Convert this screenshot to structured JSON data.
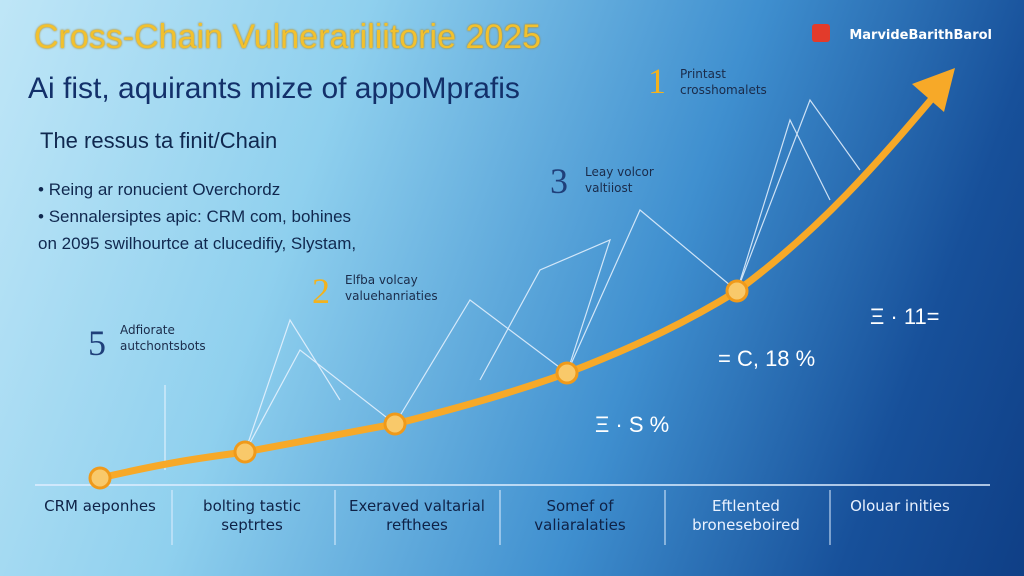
{
  "header": {
    "title": "Cross-Chain Vulnerariliitorie 2025",
    "subtitle": "Ai fist, aquirants mize of appoMprafis",
    "logo": "MarvideBarithBarol"
  },
  "intro": {
    "heading": "The ressus ta finit/Chain",
    "bullets": [
      "Reing ar ronucient Overchordz",
      "Sennalersiptes apic: CRM com, bohines on 2095 swilhourtce at clucedifiy, Slystam,"
    ]
  },
  "callouts": [
    {
      "number": "1",
      "text": "Printast crosshomalets"
    },
    {
      "number": "3",
      "text": "Leay volcor valtiiost"
    },
    {
      "number": "2",
      "text": "Elfba volcay valuehanriaties"
    },
    {
      "number": "5",
      "text": "Adfiorate autchontsbots"
    }
  ],
  "stats": [
    "Ξ · 11=",
    "= C, 18 %",
    "Ξ · S %"
  ],
  "categories": [
    "CRM aeponhes",
    "bolting tastic septrtes",
    "Exeraved valtarial refthees",
    "Somef of valiaralaties",
    "Eftlented broneseboired",
    "Olouar inities"
  ]
}
